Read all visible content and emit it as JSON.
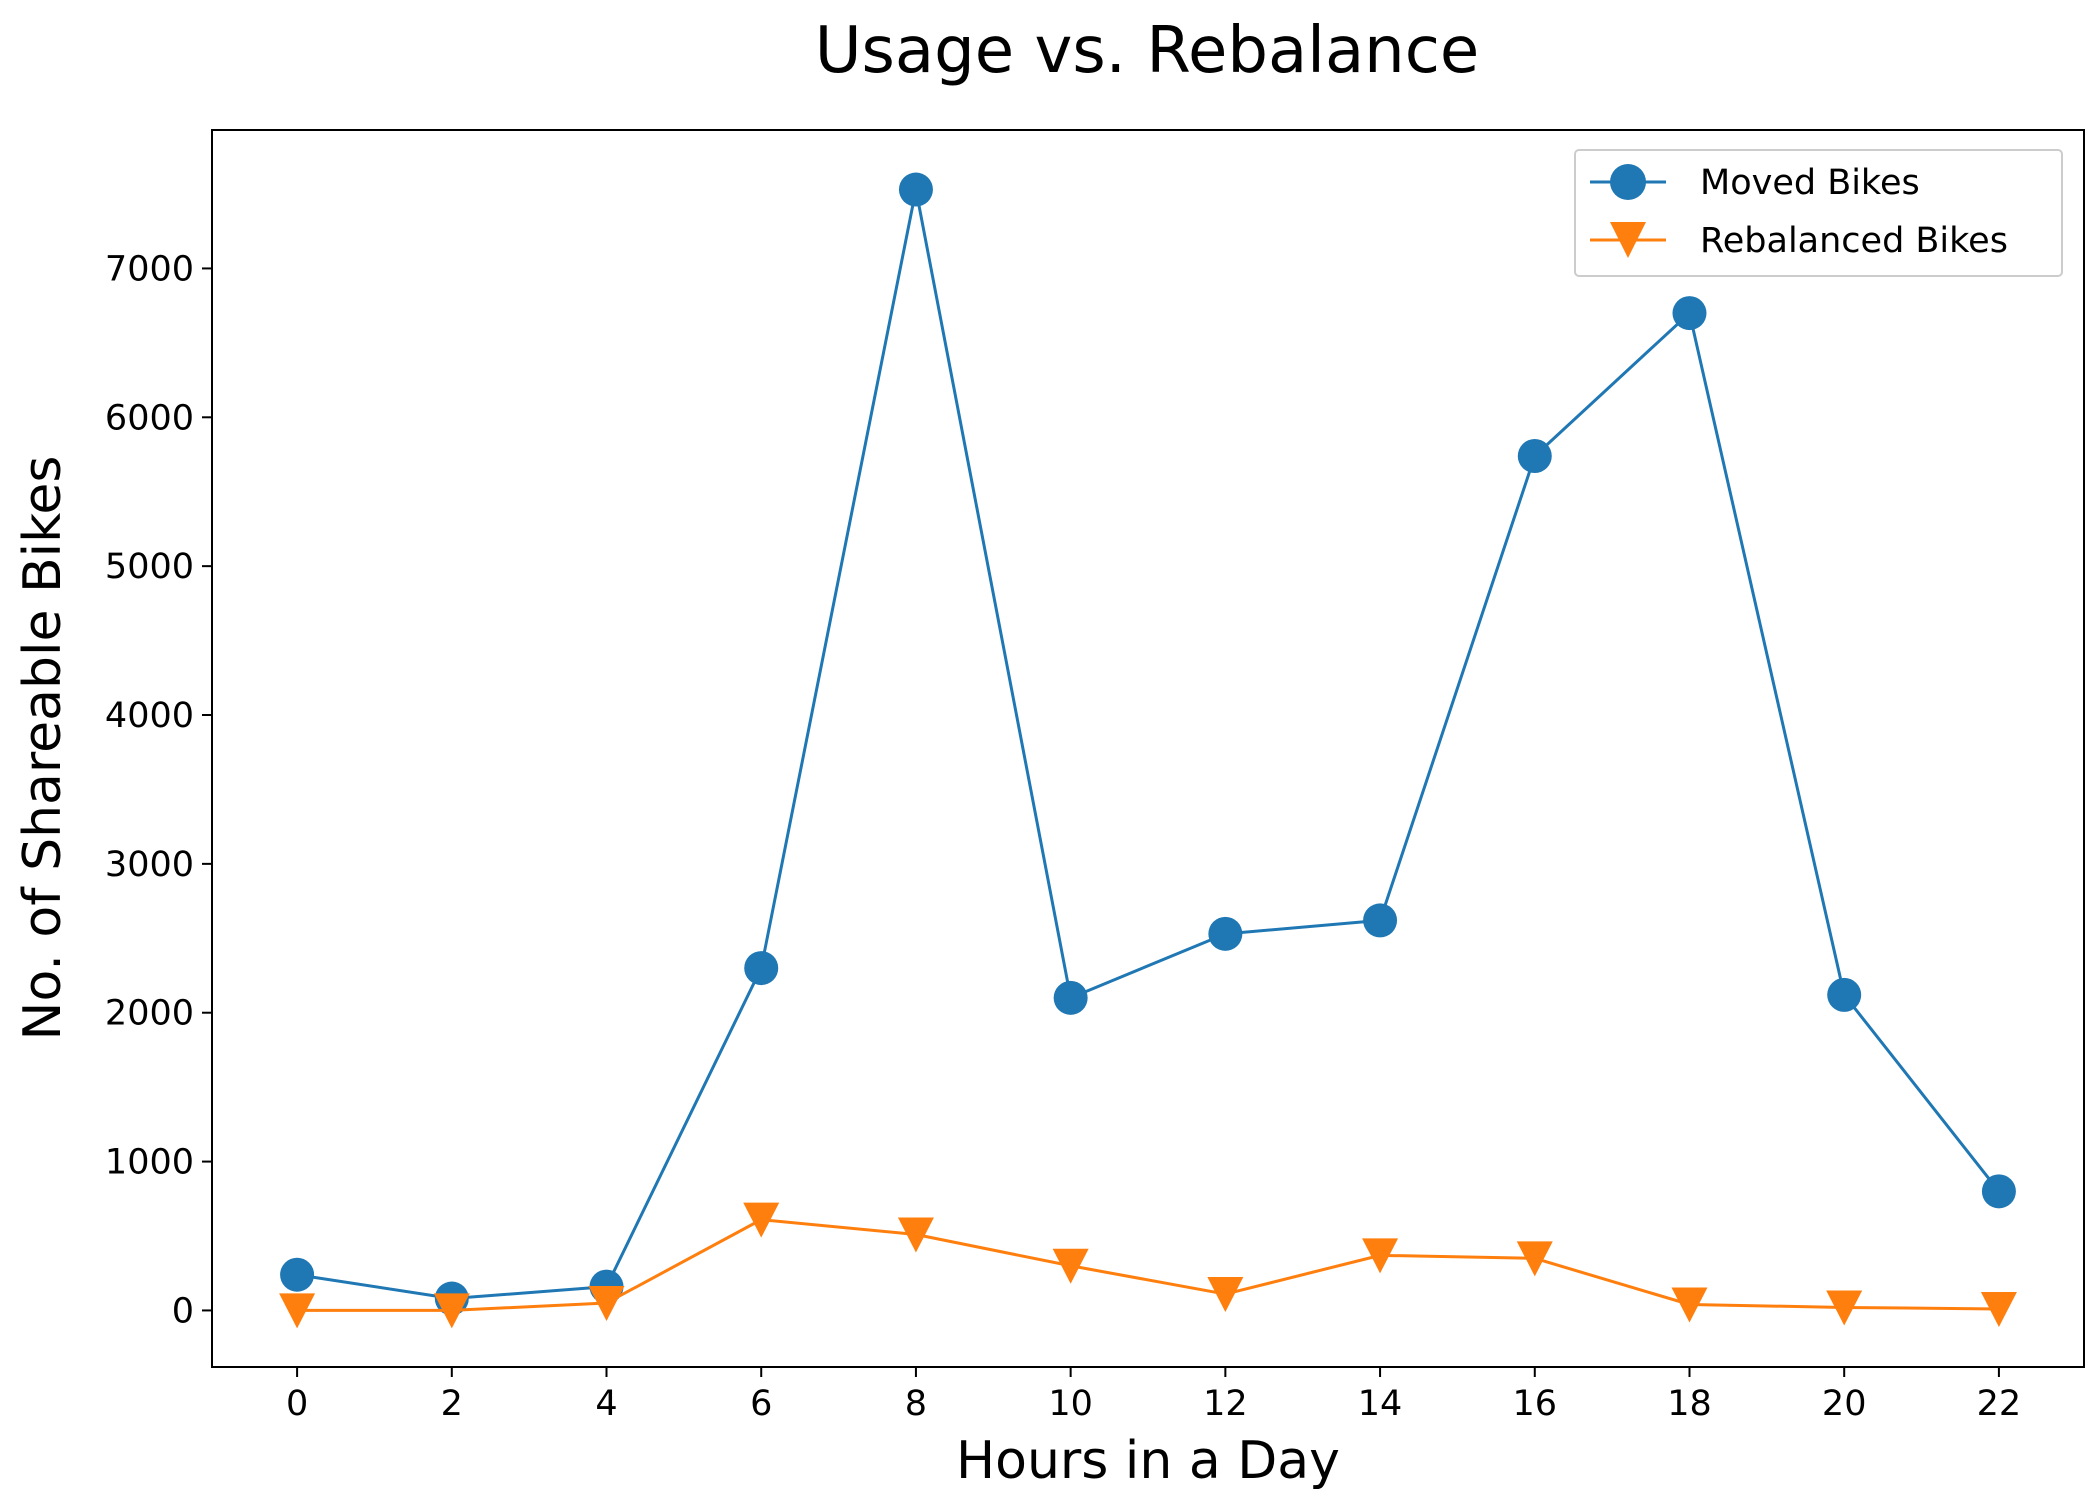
{
  "chart_data": {
    "type": "line",
    "title": "Usage vs. Rebalance",
    "xlabel": "Hours in a Day",
    "ylabel": "No. of Shareable Bikes",
    "x": [
      0,
      2,
      4,
      6,
      8,
      10,
      12,
      14,
      16,
      18,
      20,
      22
    ],
    "xticks": [
      "0",
      "2",
      "4",
      "6",
      "8",
      "10",
      "12",
      "14",
      "16",
      "18",
      "20",
      "22"
    ],
    "yticks": [
      "0",
      "1000",
      "2000",
      "3000",
      "4000",
      "5000",
      "6000",
      "7000"
    ],
    "xlim": [
      -1.1,
      23.1
    ],
    "ylim": [
      -380,
      7930
    ],
    "grid": false,
    "legend_position": "top-right",
    "series": [
      {
        "name": "Moved Bikes",
        "color": "#1f77b4",
        "marker": "circle",
        "values": [
          240,
          80,
          160,
          2300,
          7530,
          2100,
          2530,
          2620,
          5740,
          6700,
          2120,
          800
        ]
      },
      {
        "name": "Rebalanced Bikes",
        "color": "#ff7f0e",
        "marker": "triangle-down",
        "values": [
          0,
          0,
          50,
          610,
          510,
          300,
          110,
          370,
          350,
          40,
          20,
          10
        ]
      }
    ]
  }
}
